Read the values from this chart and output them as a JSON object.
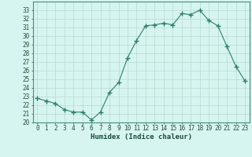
{
  "x": [
    0,
    1,
    2,
    3,
    4,
    5,
    6,
    7,
    8,
    9,
    10,
    11,
    12,
    13,
    14,
    15,
    16,
    17,
    18,
    19,
    20,
    21,
    22,
    23
  ],
  "y": [
    22.8,
    22.5,
    22.2,
    21.5,
    21.2,
    21.2,
    20.3,
    21.2,
    23.5,
    24.6,
    27.5,
    29.5,
    31.2,
    31.3,
    31.5,
    31.3,
    32.6,
    32.5,
    33.0,
    31.8,
    31.2,
    28.8,
    26.5,
    24.8
  ],
  "line_color": "#2e7d6e",
  "marker": "+",
  "marker_size": 4,
  "marker_color": "#2e7d6e",
  "bg_color": "#d6f5f0",
  "grid_color": "#b8d8d0",
  "xlabel": "Humidex (Indice chaleur)",
  "xlim": [
    -0.5,
    23.5
  ],
  "ylim": [
    20,
    34
  ],
  "yticks": [
    20,
    21,
    22,
    23,
    24,
    25,
    26,
    27,
    28,
    29,
    30,
    31,
    32,
    33
  ],
  "xticks": [
    0,
    1,
    2,
    3,
    4,
    5,
    6,
    7,
    8,
    9,
    10,
    11,
    12,
    13,
    14,
    15,
    16,
    17,
    18,
    19,
    20,
    21,
    22,
    23
  ],
  "tick_label_fontsize": 5.5,
  "xlabel_fontsize": 6.5,
  "border_color": "#4a8a7a",
  "linewidth": 0.8,
  "marker_linewidth": 1.0
}
